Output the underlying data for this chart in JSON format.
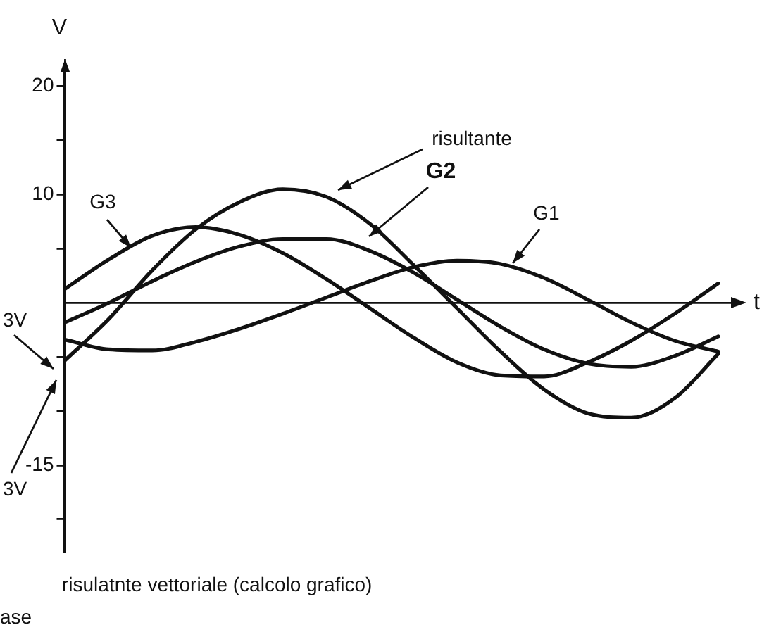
{
  "chart_data": {
    "type": "line",
    "ylabel": "V",
    "xlabel": "t",
    "ylim": [
      -23,
      22
    ],
    "yticks": [
      {
        "value": -20,
        "label": null
      },
      -15,
      {
        "value": -10,
        "label": null
      },
      {
        "value": -5,
        "label": null
      },
      {
        "value": 5,
        "label": null
      },
      10,
      {
        "value": 15,
        "label": null
      },
      20
    ],
    "categories": [
      null,
      null,
      null,
      null,
      null,
      null,
      null,
      null,
      null,
      null,
      null,
      null,
      null,
      null,
      null,
      null
    ],
    "marker": "none",
    "line_style": "solid",
    "ref_lines": [
      {
        "axis": "y",
        "value": 0
      }
    ],
    "series": [
      {
        "name": "risultante",
        "color": "#111111",
        "values": [
          -5.3,
          -1.5,
          3.0,
          6.8,
          9.3,
          10.5,
          9.8,
          7.3,
          3.5,
          -0.5,
          -4.5,
          -8.0,
          -10.2,
          -10.6,
          -8.8,
          -4.7
        ]
      },
      {
        "name": "G2",
        "color": "#111111",
        "values": [
          -1.8,
          0,
          2.0,
          3.8,
          5.2,
          5.9,
          5.9,
          4.8,
          2.8,
          0.3,
          -2.2,
          -4.3,
          -5.6,
          -5.9,
          -4.9,
          -3.1
        ]
      },
      {
        "name": "G1",
        "color": "#111111",
        "values": [
          -3.4,
          -4.3,
          -4.4,
          -3.6,
          -2.4,
          -1.0,
          0.5,
          2.0,
          3.3,
          3.9,
          3.6,
          2.3,
          0.3,
          -1.8,
          -3.5,
          -4.5
        ]
      },
      {
        "name": "G3",
        "color": "#111111",
        "values": [
          1.3,
          4.0,
          6.2,
          7.0,
          6.3,
          4.6,
          2.2,
          -0.5,
          -3.2,
          -5.5,
          -6.7,
          -6.8,
          -5.5,
          -3.5,
          -1.0,
          1.8
        ]
      }
    ],
    "annotations": [
      "3V",
      "3V",
      "risulatnte vettoriale (calcolo grafico)",
      "ase"
    ]
  }
}
